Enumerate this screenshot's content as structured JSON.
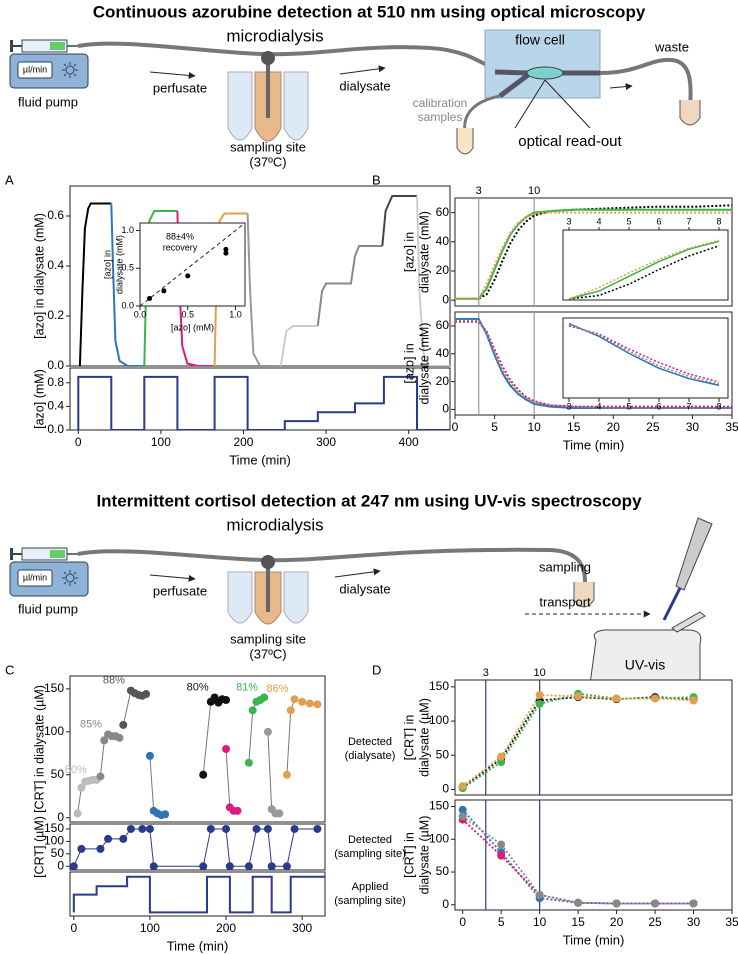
{
  "diagram_1": {
    "title": "Continuous azorubine detection at 510 nm using optical microscopy",
    "microdialysis": "microdialysis",
    "pump_rate": "µl/min",
    "pump": "fluid pump",
    "perfusate": "perfusate",
    "site": [
      "sampling site",
      "(37ºC)"
    ],
    "dialysate": "dialysate",
    "flow_cell": "flow cell",
    "waste": "waste",
    "calibration": [
      "calibration",
      "samples"
    ],
    "readout": "optical read-out"
  },
  "diagram_2": {
    "title": "Intermittent cortisol detection at 247 nm using UV-vis spectroscopy",
    "microdialysis": "microdialysis",
    "pump_rate": "µl/min",
    "pump": "fluid pump",
    "perfusate": "perfusate",
    "site": [
      "sampling site",
      "(37ºC)"
    ],
    "dialysate": "dialysate",
    "sampling": "sampling",
    "transport": "transport",
    "instrument": "UV-vis"
  },
  "chart_data": [
    {
      "type": "line",
      "panel": "A",
      "ylabel": [
        "[azo] in dialysate (mM)"
      ],
      "xlim": [
        -10,
        450
      ],
      "ylim": [
        0,
        0.72
      ],
      "yticks": [
        {
          "value": 0,
          "label": "0.0"
        },
        0.2,
        0.4,
        0.6
      ],
      "series": [
        {
          "color": "#000000",
          "x": [
            2,
            5,
            8,
            12,
            15,
            25,
            40
          ],
          "values": [
            0,
            0.3,
            0.55,
            0.63,
            0.65,
            0.65,
            0.65
          ]
        },
        {
          "color": "#2e75b6",
          "x": [
            40,
            42,
            45,
            50,
            60,
            80
          ],
          "values": [
            0.65,
            0.4,
            0.1,
            0.02,
            0,
            0
          ]
        },
        {
          "color": "#3cb44b",
          "x": [
            80,
            82,
            86,
            92,
            100,
            120
          ],
          "values": [
            0,
            0.3,
            0.58,
            0.62,
            0.62,
            0.62
          ]
        },
        {
          "color": "#e0197b",
          "x": [
            120,
            122,
            126,
            132,
            145,
            165
          ],
          "values": [
            0.62,
            0.35,
            0.08,
            0.01,
            0,
            0
          ]
        },
        {
          "color": "#e0a050",
          "x": [
            165,
            167,
            171,
            177,
            190,
            205
          ],
          "values": [
            0,
            0.3,
            0.58,
            0.61,
            0.61,
            0.61
          ]
        },
        {
          "color": "#999999",
          "x": [
            205,
            208,
            212,
            220,
            245
          ],
          "values": [
            0.61,
            0.3,
            0.05,
            0,
            0
          ]
        },
        {
          "color": "#cccccc",
          "x": [
            245,
            252,
            260,
            290
          ],
          "values": [
            0,
            0.14,
            0.16,
            0.16
          ]
        },
        {
          "color": "#888888",
          "x": [
            290,
            295,
            300,
            330,
            335,
            340,
            368
          ],
          "values": [
            0.16,
            0.3,
            0.33,
            0.33,
            0.44,
            0.48,
            0.48
          ]
        },
        {
          "color": "#444444",
          "x": [
            368,
            372,
            380,
            410
          ],
          "values": [
            0.48,
            0.62,
            0.68,
            0.68
          ]
        },
        {
          "color": "#cccccc",
          "x": [
            410,
            413,
            418,
            425,
            450
          ],
          "values": [
            0.68,
            0.3,
            0.05,
            0,
            0
          ]
        }
      ]
    },
    {
      "type": "line",
      "ylabel": [
        "[azo] (mM)"
      ],
      "xlabel": "Time (min)",
      "xlim": [
        -10,
        450
      ],
      "ylim": [
        0,
        1.05
      ],
      "yticks": [
        {
          "value": 0,
          "label": "0.0"
        },
        0.4,
        0.8
      ],
      "xticks": [
        0,
        100,
        200,
        300,
        400
      ],
      "series": [
        {
          "color": "#2a3a8c",
          "x": [
            0,
            0,
            40,
            40,
            80,
            80,
            120,
            120,
            165,
            165,
            205,
            205,
            250,
            250,
            290,
            290,
            335,
            335,
            370,
            370,
            410,
            410,
            450
          ],
          "values": [
            0,
            0.9,
            0.9,
            0,
            0,
            0.9,
            0.9,
            0,
            0,
            0.9,
            0.9,
            0,
            0,
            0.15,
            0.15,
            0.3,
            0.3,
            0.45,
            0.45,
            0.9,
            0.9,
            0,
            0
          ]
        }
      ]
    },
    {
      "type": "scatter",
      "ylabel": [
        "[azo] in",
        "dialysate (mM)"
      ],
      "xlabel": "[azo] (mM)",
      "xlim": [
        0,
        1.1
      ],
      "ylim": [
        0,
        1.1
      ],
      "xticks": [
        {
          "value": 0,
          "label": "0.0"
        },
        0.5,
        {
          "value": 1,
          "label": "1.0"
        }
      ],
      "yticks": [
        {
          "value": 0,
          "label": "0.0"
        },
        0.5,
        {
          "value": 1,
          "label": "1.0"
        }
      ],
      "diagonal": true,
      "annotation": [
        "88±4%",
        "recovery"
      ],
      "series": [
        {
          "color": "#000000",
          "x": [
            0.1,
            0.25,
            0.5,
            0.9,
            0.9
          ],
          "values": [
            0.1,
            0.2,
            0.4,
            0.7,
            0.75
          ]
        }
      ]
    },
    {
      "type": "line",
      "panel": "B",
      "ylabel": [
        "[azo] in",
        "dialysate (mM)"
      ],
      "xlim": [
        0,
        35
      ],
      "ylim": [
        -4,
        70
      ],
      "yticks": [
        0,
        20,
        40,
        60
      ],
      "vlines": [
        3,
        10
      ],
      "vline_color": "#999999",
      "x": [
        0,
        3,
        4,
        5,
        6,
        7,
        8,
        9,
        10,
        12,
        15,
        20,
        25,
        30,
        35
      ],
      "series": [
        {
          "color": "#000000",
          "dash": "dotted",
          "values": [
            1,
            1,
            4,
            14,
            27,
            39,
            48,
            54,
            58,
            61,
            62,
            63,
            64,
            64,
            65
          ]
        },
        {
          "color": "#3cb44b",
          "values": [
            1,
            1,
            8,
            21,
            34,
            45,
            52,
            57,
            60,
            61,
            62,
            62,
            62,
            62,
            62
          ]
        },
        {
          "color": "#e0a050",
          "dash": "dotted",
          "values": [
            1,
            1,
            11,
            24,
            36,
            46,
            53,
            57,
            59,
            60,
            60,
            60,
            60,
            60,
            60
          ]
        }
      ]
    },
    {
      "type": "line",
      "xlim": [
        2.8,
        8.3
      ],
      "ylim": [
        0,
        62
      ],
      "xticks": [
        3,
        4,
        5,
        6,
        7,
        8
      ],
      "xtick_side": "top",
      "x": [
        3,
        4,
        5,
        6,
        7,
        8
      ],
      "series": [
        {
          "color": "#000000",
          "dash": "dotted",
          "values": [
            1,
            4,
            14,
            27,
            39,
            48
          ]
        },
        {
          "color": "#3cb44b",
          "values": [
            1,
            8,
            21,
            34,
            45,
            52
          ]
        },
        {
          "color": "#e0a050",
          "dash": "dotted",
          "values": [
            1,
            11,
            24,
            36,
            46,
            53
          ]
        }
      ]
    },
    {
      "type": "line",
      "ylabel": [
        "[azo] in",
        "dialysate (mM)"
      ],
      "xlabel": "Time (min)",
      "xlim": [
        0,
        35
      ],
      "ylim": [
        -4,
        70
      ],
      "yticks": [
        0,
        20,
        40,
        60
      ],
      "xticks": [
        0,
        5,
        10,
        15,
        20,
        25,
        30,
        35
      ],
      "vlines": [
        3,
        10
      ],
      "vline_labels": false,
      "vline_color": "#999999",
      "x": [
        0,
        3,
        4,
        5,
        6,
        7,
        8,
        9,
        10,
        12,
        15,
        20,
        25,
        30,
        35
      ],
      "series": [
        {
          "color": "#2e75b6",
          "values": [
            65,
            65,
            54,
            39,
            26,
            17,
            11,
            7,
            4,
            2,
            1,
            1,
            1,
            1,
            1
          ]
        },
        {
          "color": "#e0197b",
          "dash": "dotted",
          "values": [
            63,
            63,
            56,
            43,
            31,
            21,
            14,
            9,
            6,
            3,
            2,
            2,
            2,
            2,
            2
          ]
        },
        {
          "color": "#888888",
          "dash": "dotted",
          "values": [
            64,
            64,
            55,
            41,
            28,
            19,
            12,
            8,
            5,
            3,
            2,
            1,
            1,
            1,
            1
          ]
        }
      ]
    },
    {
      "type": "line",
      "xlim": [
        2.8,
        8.3
      ],
      "ylim": [
        0,
        70
      ],
      "xticks": [
        3,
        4,
        5,
        6,
        7,
        8
      ],
      "x": [
        3,
        4,
        5,
        6,
        7,
        8
      ],
      "series": [
        {
          "color": "#2e75b6",
          "values": [
            65,
            54,
            39,
            26,
            17,
            11
          ]
        },
        {
          "color": "#e0197b",
          "dash": "dotted",
          "values": [
            63,
            56,
            43,
            31,
            21,
            14
          ]
        },
        {
          "color": "#888888",
          "dash": "dotted",
          "values": [
            64,
            55,
            41,
            28,
            19,
            12
          ]
        }
      ]
    },
    {
      "type": "scatter",
      "panel": "C",
      "connect": "solid",
      "connect_color": "#777777",
      "ylabel": [
        "[CRT] in dialysate (µM)"
      ],
      "xlim": [
        -5,
        330
      ],
      "ylim": [
        -5,
        165
      ],
      "yticks": [
        0,
        50,
        100,
        150
      ],
      "side_label": [
        "Detected",
        "(dialysate)"
      ],
      "series": [
        {
          "color": "#bbbbbb",
          "label": "80%",
          "x": [
            5,
            10,
            15,
            20,
            25,
            30
          ],
          "values": [
            5,
            35,
            42,
            43,
            44,
            44
          ]
        },
        {
          "color": "#888888",
          "label": "85%",
          "x": [
            35,
            40,
            45,
            50,
            55,
            60
          ],
          "values": [
            48,
            90,
            97,
            95,
            95,
            93
          ]
        },
        {
          "color": "#555555",
          "label": "88%",
          "x": [
            65,
            75,
            80,
            85,
            90,
            95
          ],
          "values": [
            108,
            148,
            145,
            143,
            142,
            144
          ]
        },
        {
          "color": "#2e75b6",
          "x": [
            100,
            105,
            110,
            115,
            120
          ],
          "values": [
            72,
            8,
            5,
            3,
            4
          ]
        },
        {
          "color": "#111111",
          "label": "80%",
          "x": [
            170,
            180,
            185,
            190,
            195,
            200
          ],
          "values": [
            50,
            135,
            140,
            134,
            138,
            137
          ]
        },
        {
          "color": "#e0197b",
          "x": [
            200,
            205,
            210,
            215
          ],
          "values": [
            80,
            12,
            8,
            8
          ]
        },
        {
          "color": "#3cb44b",
          "label": "81%",
          "x": [
            230,
            235,
            240,
            245,
            250
          ],
          "values": [
            64,
            125,
            135,
            137,
            140
          ]
        },
        {
          "color": "#999999",
          "x": [
            255,
            260,
            265,
            270
          ],
          "values": [
            100,
            10,
            5,
            5
          ]
        },
        {
          "color": "#e0a050",
          "label": "86%",
          "x": [
            280,
            285,
            290,
            300,
            310,
            320
          ],
          "values": [
            50,
            125,
            138,
            135,
            133,
            132
          ]
        }
      ]
    },
    {
      "type": "scatter",
      "connect": "solid",
      "connect_color": "#2a3a8c",
      "ylabel": [
        "[CRT] (µM)"
      ],
      "xlim": [
        -5,
        330
      ],
      "ylim": [
        -15,
        170
      ],
      "yticks": [
        0,
        50,
        100,
        150
      ],
      "side_label": [
        "Detected",
        "(sampling site)"
      ],
      "series": [
        {
          "color": "#2a3a8c",
          "x": [
            0,
            10,
            35,
            45,
            65,
            75,
            90,
            100,
            105,
            170,
            180,
            200,
            205,
            230,
            240,
            255,
            260,
            280,
            290,
            320
          ],
          "values": [
            0,
            70,
            70,
            110,
            110,
            150,
            150,
            150,
            0,
            0,
            150,
            150,
            0,
            0,
            150,
            150,
            0,
            0,
            150,
            150
          ]
        }
      ]
    },
    {
      "type": "line",
      "xlabel": "Time (min)",
      "xlim": [
        -5,
        330
      ],
      "ylim": [
        -15,
        170
      ],
      "xticks": [
        0,
        100,
        200,
        300
      ],
      "side_label": [
        "Applied",
        "(sampling site)"
      ],
      "series": [
        {
          "color": "#2a3a8c",
          "x": [
            0,
            0,
            30,
            30,
            70,
            70,
            100,
            100,
            175,
            175,
            205,
            205,
            235,
            235,
            260,
            260,
            285,
            285,
            330
          ],
          "values": [
            0,
            75,
            75,
            110,
            110,
            150,
            150,
            0,
            0,
            150,
            150,
            0,
            0,
            150,
            150,
            0,
            0,
            150,
            150
          ]
        }
      ]
    },
    {
      "type": "scatter",
      "panel": "D",
      "connect": "dotted",
      "ylabel": [
        "[CRT] in",
        "dialysate (µM)"
      ],
      "xlim": [
        -1,
        35
      ],
      "ylim": [
        -8,
        160
      ],
      "yticks": [
        0,
        50,
        100,
        150
      ],
      "vlines": [
        3,
        10
      ],
      "vline_color": "#2a3a8c",
      "x": [
        0,
        5,
        10,
        15,
        20,
        25,
        30
      ],
      "series": [
        {
          "color": "#111111",
          "values": [
            3,
            45,
            130,
            135,
            132,
            135,
            132
          ]
        },
        {
          "color": "#3cb44b",
          "values": [
            2,
            40,
            125,
            140,
            133,
            133,
            135
          ]
        },
        {
          "color": "#e0a050",
          "values": [
            5,
            48,
            138,
            136,
            133,
            133,
            130
          ]
        }
      ]
    },
    {
      "type": "scatter",
      "connect": "dotted",
      "ylabel": [
        "[CRT] in",
        "dialysate (µM)"
      ],
      "xlabel": "Time (min)",
      "xlim": [
        -1,
        35
      ],
      "ylim": [
        -8,
        160
      ],
      "yticks": [
        0,
        50,
        100,
        150
      ],
      "xticks": [
        0,
        5,
        10,
        15,
        20,
        25,
        30,
        35
      ],
      "vlines": [
        3,
        10
      ],
      "vline_labels": false,
      "vline_color": "#2a3a8c",
      "x": [
        0,
        5,
        10,
        15,
        20,
        25,
        30
      ],
      "series": [
        {
          "color": "#2e75b6",
          "values": [
            145,
            80,
            10,
            3,
            2,
            2,
            2
          ]
        },
        {
          "color": "#e0197b",
          "values": [
            130,
            75,
            15,
            3,
            2,
            2,
            2
          ]
        },
        {
          "color": "#888888",
          "values": [
            135,
            92,
            15,
            3,
            2,
            2,
            2
          ]
        }
      ]
    }
  ]
}
